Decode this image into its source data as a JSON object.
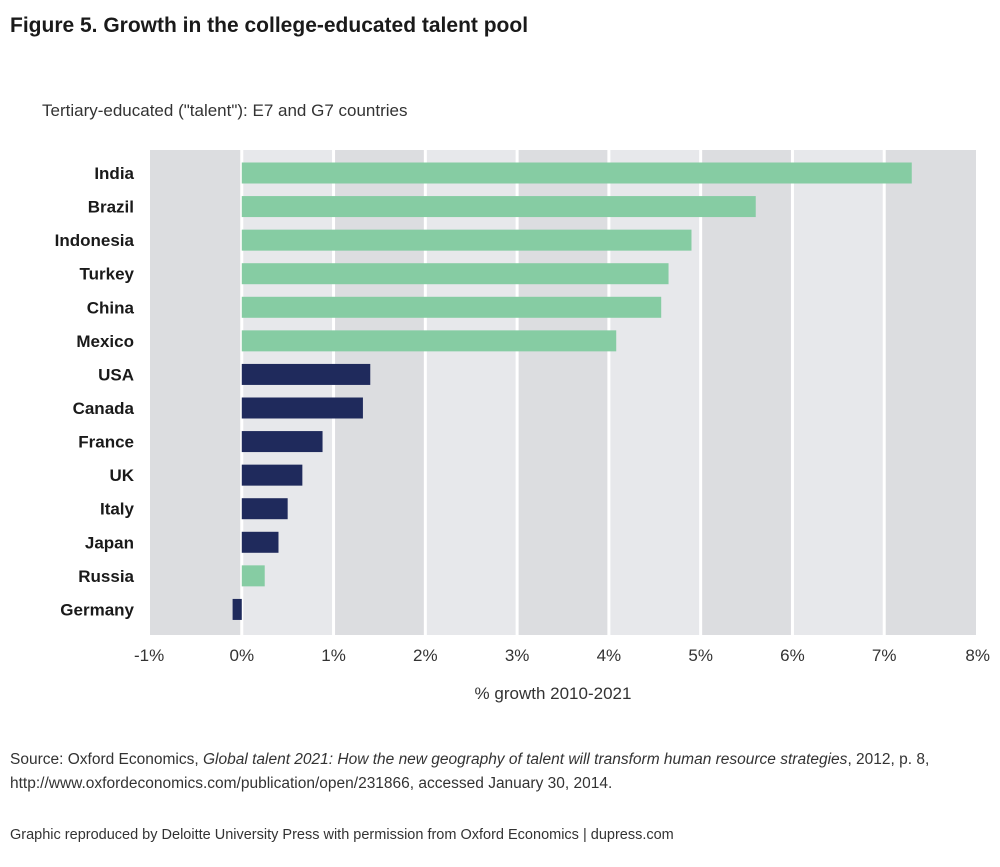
{
  "figure": {
    "title": "Figure 5. Growth in the college-educated talent pool",
    "subtitle": "Tertiary-educated (\"talent\"): E7 and G7 countries"
  },
  "source": {
    "prefix": "Source: Oxford Economics, ",
    "work_title": "Global talent 2021: How the new geography of talent will transform human resource strategies",
    "suffix": ", 2012, p. 8, http://www.oxfordeconomics.com/publication/open/231866, accessed January 30, 2014."
  },
  "credit": "Graphic reproduced by Deloitte University Press with permission from Oxford Economics | dupress.com",
  "colors": {
    "e7": "#86cca3",
    "g7": "#1f2a5c",
    "band_dark": "#dcdde0",
    "band_light": "#e7e8eb",
    "gridline": "#ffffff"
  },
  "chart_data": {
    "type": "bar",
    "orientation": "horizontal",
    "title": "",
    "xlabel": "% growth 2010-2021",
    "ylabel": "",
    "xlim": [
      -1,
      8
    ],
    "xticks": [
      -1,
      0,
      1,
      2,
      3,
      4,
      5,
      6,
      7,
      8
    ],
    "xtick_labels": [
      "-1%",
      "0%",
      "1%",
      "2%",
      "3%",
      "4%",
      "5%",
      "6%",
      "7%",
      "8%"
    ],
    "grid": true,
    "categories": [
      "India",
      "Brazil",
      "Indonesia",
      "Turkey",
      "China",
      "Mexico",
      "USA",
      "Canada",
      "France",
      "UK",
      "Italy",
      "Japan",
      "Russia",
      "Germany"
    ],
    "values": [
      7.3,
      5.6,
      4.9,
      4.65,
      4.57,
      4.08,
      1.4,
      1.32,
      0.88,
      0.66,
      0.5,
      0.4,
      0.25,
      -0.1
    ],
    "groups": [
      "E7",
      "E7",
      "E7",
      "E7",
      "E7",
      "E7",
      "G7",
      "G7",
      "G7",
      "G7",
      "G7",
      "G7",
      "E7",
      "G7"
    ]
  }
}
